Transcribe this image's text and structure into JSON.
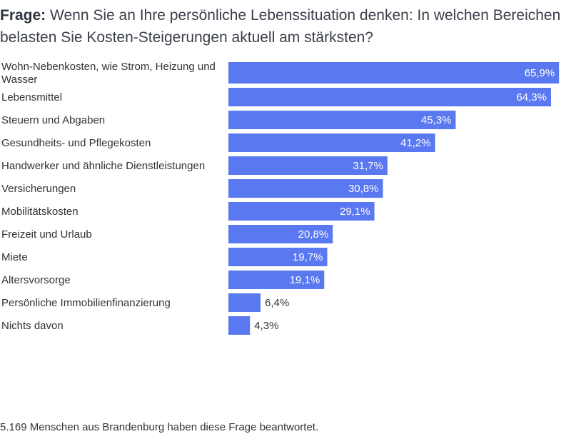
{
  "title": {
    "lead": "Frage:",
    "text": "Wenn Sie an Ihre persönliche Lebenssituation denken: In welchen Bereichen belasten Sie Kosten-Steigerungen aktuell am stärksten?"
  },
  "footer": "5.169 Menschen aus Brandenburg haben diese Frage beantwortet.",
  "colors": {
    "bar": "#5a78f0"
  },
  "chart_data": {
    "type": "bar",
    "orientation": "horizontal",
    "categories": [
      "Wohn-Nebenkosten, wie Strom, Heizung und Wasser",
      "Lebensmittel",
      "Steuern und Abgaben",
      "Gesundheits- und Pflegekosten",
      "Handwerker und ähnliche Dienstleistungen",
      "Versicherungen",
      "Mobilitätskosten",
      "Freizeit und Urlaub",
      "Miete",
      "Altersvorsorge",
      "Persönliche Immobilienfinanzierung",
      "Nichts davon"
    ],
    "values": [
      65.9,
      64.3,
      45.3,
      41.2,
      31.7,
      30.8,
      29.1,
      20.8,
      19.7,
      19.1,
      6.4,
      4.3
    ],
    "value_labels": [
      "65,9%",
      "64,3%",
      "45,3%",
      "41,2%",
      "31,7%",
      "30,8%",
      "29,1%",
      "20,8%",
      "19,7%",
      "19,1%",
      "6,4%",
      "4,3%"
    ],
    "xlim": [
      0,
      68
    ],
    "grid": false,
    "legend": "none"
  }
}
